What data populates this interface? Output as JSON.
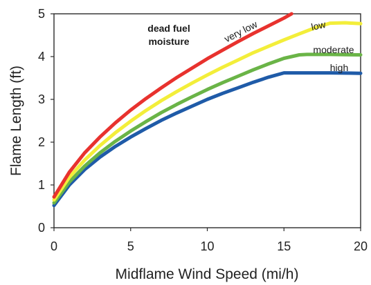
{
  "chart_data": {
    "type": "line",
    "title": "",
    "xlabel": "Midflame Wind Speed (mi/h)",
    "ylabel": "Flame Length (ft)",
    "xlim": [
      0,
      20
    ],
    "ylim": [
      0,
      5
    ],
    "xticks": [
      0,
      5,
      10,
      15,
      20
    ],
    "yticks": [
      0,
      1,
      2,
      3,
      4,
      5
    ],
    "grid": false,
    "legend_title": [
      "dead fuel",
      "moisture"
    ],
    "series": [
      {
        "name": "very low",
        "color": "#e8322e",
        "x": [
          0,
          1,
          2,
          3,
          4,
          5,
          6,
          7,
          8,
          9,
          10,
          11,
          12,
          13,
          14,
          15,
          15.5
        ],
        "y": [
          0.72,
          1.3,
          1.75,
          2.12,
          2.45,
          2.75,
          3.02,
          3.27,
          3.51,
          3.73,
          3.95,
          4.15,
          4.35,
          4.54,
          4.72,
          4.9,
          5.0
        ]
      },
      {
        "name": "low",
        "color": "#f3ee3a",
        "x": [
          0,
          1,
          2,
          3,
          4,
          5,
          6,
          7,
          8,
          9,
          10,
          11,
          12,
          13,
          14,
          15,
          16,
          17,
          18,
          19,
          20
        ],
        "y": [
          0.65,
          1.18,
          1.58,
          1.92,
          2.22,
          2.49,
          2.74,
          2.97,
          3.18,
          3.38,
          3.57,
          3.75,
          3.92,
          4.09,
          4.24,
          4.39,
          4.53,
          4.67,
          4.78,
          4.79,
          4.77
        ]
      },
      {
        "name": "moderate",
        "color": "#6ab447",
        "x": [
          0,
          1,
          2,
          3,
          4,
          5,
          6,
          7,
          8,
          9,
          10,
          11,
          12,
          13,
          14,
          15,
          16,
          16.5,
          18,
          20
        ],
        "y": [
          0.58,
          1.07,
          1.44,
          1.75,
          2.02,
          2.26,
          2.48,
          2.69,
          2.88,
          3.06,
          3.23,
          3.39,
          3.54,
          3.69,
          3.83,
          3.96,
          4.04,
          4.05,
          4.05,
          4.04
        ]
      },
      {
        "name": "high",
        "color": "#1f5ba8",
        "x": [
          0,
          1,
          2,
          3,
          4,
          5,
          6,
          7,
          8,
          9,
          10,
          11,
          12,
          13,
          14,
          15,
          16,
          18,
          20
        ],
        "y": [
          0.52,
          1.0,
          1.36,
          1.65,
          1.9,
          2.12,
          2.32,
          2.51,
          2.68,
          2.84,
          3.0,
          3.14,
          3.27,
          3.4,
          3.52,
          3.62,
          3.62,
          3.62,
          3.61
        ]
      }
    ]
  }
}
